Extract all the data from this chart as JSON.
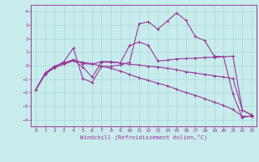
{
  "background_color": "#c8ecec",
  "grid_color": "#a8d8d8",
  "line_color": "#993399",
  "xlabel": "Windchill (Refroidissement éolien,°C)",
  "xlim": [
    -0.5,
    23.5
  ],
  "ylim": [
    -4.5,
    4.5
  ],
  "yticks": [
    -4,
    -3,
    -2,
    -1,
    0,
    1,
    2,
    3,
    4
  ],
  "xticks": [
    0,
    1,
    2,
    3,
    4,
    5,
    6,
    7,
    8,
    9,
    10,
    11,
    12,
    13,
    14,
    15,
    16,
    17,
    18,
    19,
    20,
    21,
    22,
    23
  ],
  "lines": [
    {
      "x": [
        0,
        1,
        2,
        3,
        4,
        5,
        6,
        7,
        8,
        9,
        10,
        11,
        12,
        13,
        14,
        15,
        16,
        17,
        18,
        19,
        20,
        21,
        22,
        23
      ],
      "y": [
        -1.8,
        -0.65,
        -0.15,
        0.1,
        0.35,
        0.25,
        0.15,
        -0.05,
        -0.2,
        -0.4,
        -0.65,
        -0.9,
        -1.1,
        -1.3,
        -1.5,
        -1.75,
        -2.0,
        -2.2,
        -2.45,
        -2.7,
        -2.95,
        -3.25,
        -3.75,
        -3.75
      ]
    },
    {
      "x": [
        0,
        1,
        2,
        3,
        4,
        5,
        6,
        7,
        8,
        9,
        10,
        11,
        12,
        13,
        14,
        15,
        16,
        17,
        18,
        19,
        20,
        21,
        22,
        23
      ],
      "y": [
        -1.8,
        -0.6,
        -0.1,
        0.3,
        1.3,
        -0.95,
        -1.25,
        -0.05,
        -0.05,
        0.05,
        0.25,
        3.1,
        3.25,
        2.7,
        3.3,
        3.9,
        3.35,
        2.15,
        1.85,
        0.7,
        0.65,
        -2.1,
        -3.85,
        -3.7
      ]
    },
    {
      "x": [
        0,
        1,
        2,
        3,
        4,
        5,
        6,
        7,
        8,
        9,
        10,
        11,
        12,
        13,
        14,
        15,
        16,
        17,
        18,
        19,
        20,
        21,
        22,
        23
      ],
      "y": [
        -1.8,
        -0.55,
        -0.05,
        0.2,
        0.45,
        0.15,
        0.1,
        0.3,
        0.3,
        0.2,
        0.1,
        0.05,
        -0.05,
        -0.1,
        -0.2,
        -0.3,
        -0.45,
        -0.55,
        -0.65,
        -0.75,
        -0.85,
        -0.95,
        -3.3,
        -3.65
      ]
    },
    {
      "x": [
        0,
        1,
        2,
        3,
        4,
        5,
        6,
        7,
        8,
        9,
        10,
        11,
        12,
        13,
        14,
        15,
        16,
        17,
        18,
        19,
        20,
        21,
        22,
        23
      ],
      "y": [
        -1.8,
        -0.55,
        -0.05,
        0.2,
        0.4,
        -0.1,
        -0.85,
        0.25,
        0.25,
        0.2,
        1.5,
        1.75,
        1.5,
        0.35,
        0.4,
        0.5,
        0.52,
        0.55,
        0.6,
        0.62,
        0.65,
        0.7,
        -3.3,
        -3.65
      ]
    }
  ]
}
